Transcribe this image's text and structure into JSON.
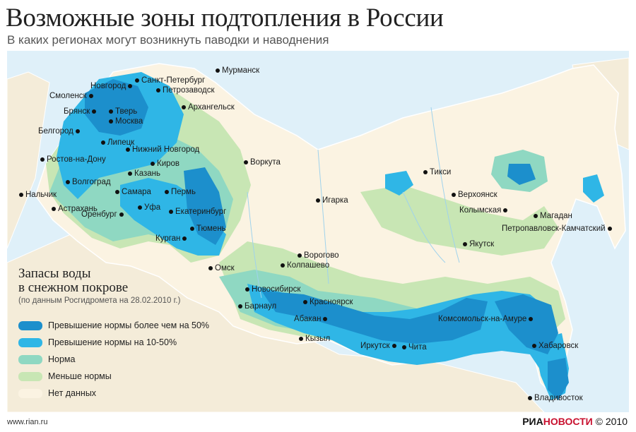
{
  "header": {
    "title": "Возможные зоны подтопления в России",
    "subtitle": "В каких регионах могут возникнуть паводки и наводнения"
  },
  "colors": {
    "sea": "#dff0f9",
    "no_data": "#fbf3e2",
    "less": "#c8e6b4",
    "norm": "#8fd8c2",
    "over_10_50": "#2fb6e6",
    "over_50": "#1c8fcc",
    "border": "#ffffff"
  },
  "legend": {
    "heading_line1": "Запасы воды",
    "heading_line2": "в снежном покрове",
    "note": "(по данным Росгидромета на 28.02.2010 г.)",
    "items": [
      {
        "label": "Превышение нормы более чем на 50%",
        "color": "#1c8fcc"
      },
      {
        "label": "Превышение нормы на 10-50%",
        "color": "#2fb6e6"
      },
      {
        "label": "Норма",
        "color": "#8fd8c2"
      },
      {
        "label": "Меньше нормы",
        "color": "#c8e6b4"
      },
      {
        "label": "Нет данных",
        "color": "#fbf3e2"
      }
    ]
  },
  "cities": [
    {
      "name": "Мурманск",
      "side": "right"
    },
    {
      "name": "Санкт-Петербург",
      "side": "right"
    },
    {
      "name": "Петрозаводск",
      "side": "right"
    },
    {
      "name": "Новгород",
      "side": "left"
    },
    {
      "name": "Смоленск",
      "side": "left"
    },
    {
      "name": "Архангельск",
      "side": "right"
    },
    {
      "name": "Брянск",
      "side": "left"
    },
    {
      "name": "Тверь",
      "side": "right"
    },
    {
      "name": "Москва",
      "side": "right"
    },
    {
      "name": "Белгород",
      "side": "left"
    },
    {
      "name": "Липецк",
      "side": "right"
    },
    {
      "name": "Нижний Новгород",
      "side": "right"
    },
    {
      "name": "Ростов-на-Дону",
      "side": "right"
    },
    {
      "name": "Воркута",
      "side": "right"
    },
    {
      "name": "Киров",
      "side": "right"
    },
    {
      "name": "Казань",
      "side": "right"
    },
    {
      "name": "Волгоград",
      "side": "right"
    },
    {
      "name": "Тикси",
      "side": "right"
    },
    {
      "name": "Нальчик",
      "side": "right"
    },
    {
      "name": "Самара",
      "side": "right"
    },
    {
      "name": "Пермь",
      "side": "right"
    },
    {
      "name": "Игарка",
      "side": "right"
    },
    {
      "name": "Верхоянск",
      "side": "right"
    },
    {
      "name": "Уфа",
      "side": "right"
    },
    {
      "name": "Астрахань",
      "side": "right"
    },
    {
      "name": "Екатеринбург",
      "side": "right"
    },
    {
      "name": "Колымская",
      "side": "left"
    },
    {
      "name": "Магадан",
      "side": "right"
    },
    {
      "name": "Оренбург",
      "side": "left"
    },
    {
      "name": "Тюмень",
      "side": "right"
    },
    {
      "name": "Петропавловск-Камчатский",
      "side": "left"
    },
    {
      "name": "Курган",
      "side": "left"
    },
    {
      "name": "Якутск",
      "side": "right"
    },
    {
      "name": "Ворогово",
      "side": "right"
    },
    {
      "name": "Омск",
      "side": "right"
    },
    {
      "name": "Колпашево",
      "side": "right"
    },
    {
      "name": "Новосибирск",
      "side": "right"
    },
    {
      "name": "Красноярск",
      "side": "right"
    },
    {
      "name": "Барнаул",
      "side": "right"
    },
    {
      "name": "Комсомольск-на-Амуре",
      "side": "left"
    },
    {
      "name": "Абакан",
      "side": "left"
    },
    {
      "name": "Хабаровск",
      "side": "right"
    },
    {
      "name": "Кызыл",
      "side": "right"
    },
    {
      "name": "Иркутск",
      "side": "left"
    },
    {
      "name": "Чита",
      "side": "right"
    },
    {
      "name": "Владивосток",
      "side": "right"
    }
  ],
  "footer": {
    "source": "www.rian.ru",
    "brand_ria": "РИА",
    "brand_novosti": "НОВОСТИ",
    "copyright": "© 2010"
  }
}
